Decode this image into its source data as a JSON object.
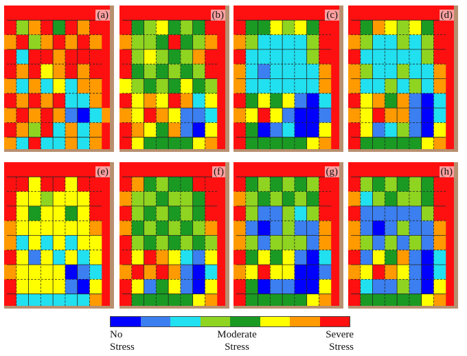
{
  "figure": {
    "panels": [
      {
        "label": "(a)",
        "stress": [
          [
            7,
            7,
            7,
            7,
            7,
            7,
            7,
            7,
            7
          ],
          [
            7,
            3,
            6,
            7,
            4,
            7,
            6,
            7,
            7
          ],
          [
            6,
            7,
            3,
            6,
            7,
            6,
            7,
            6,
            7
          ],
          [
            7,
            2,
            7,
            7,
            6,
            7,
            7,
            7,
            7
          ],
          [
            7,
            6,
            7,
            5,
            6,
            7,
            6,
            7,
            7
          ],
          [
            6,
            2,
            6,
            2,
            5,
            2,
            6,
            6,
            7
          ],
          [
            7,
            6,
            7,
            6,
            7,
            2,
            2,
            6,
            7
          ],
          [
            6,
            7,
            6,
            7,
            6,
            1,
            0,
            2,
            6
          ],
          [
            7,
            6,
            3,
            7,
            2,
            6,
            2,
            6,
            7
          ],
          [
            6,
            2,
            7,
            2,
            2,
            6,
            2,
            6,
            7
          ]
        ]
      },
      {
        "label": "(b)",
        "stress": [
          [
            7,
            7,
            7,
            7,
            7,
            7,
            7,
            7,
            7
          ],
          [
            7,
            4,
            3,
            5,
            4,
            3,
            4,
            7,
            7
          ],
          [
            6,
            3,
            3,
            4,
            7,
            4,
            3,
            6,
            7
          ],
          [
            7,
            3,
            5,
            3,
            4,
            3,
            6,
            7,
            7
          ],
          [
            7,
            4,
            3,
            4,
            3,
            4,
            3,
            7,
            7
          ],
          [
            5,
            3,
            4,
            3,
            4,
            5,
            4,
            3,
            7
          ],
          [
            7,
            5,
            6,
            5,
            7,
            6,
            2,
            5,
            7
          ],
          [
            6,
            5,
            7,
            6,
            5,
            1,
            1,
            2,
            7
          ],
          [
            7,
            6,
            5,
            4,
            6,
            1,
            0,
            5,
            7
          ],
          [
            7,
            5,
            4,
            4,
            4,
            4,
            5,
            6,
            7
          ]
        ]
      },
      {
        "label": "(c)",
        "stress": [
          [
            7,
            7,
            7,
            7,
            7,
            7,
            7,
            7,
            7
          ],
          [
            7,
            4,
            4,
            5,
            3,
            5,
            4,
            7,
            7
          ],
          [
            6,
            3,
            2,
            2,
            2,
            2,
            3,
            7,
            7
          ],
          [
            7,
            2,
            2,
            2,
            2,
            2,
            3,
            7,
            7
          ],
          [
            6,
            2,
            1,
            2,
            2,
            2,
            2,
            6,
            7
          ],
          [
            6,
            2,
            2,
            2,
            2,
            2,
            2,
            6,
            7
          ],
          [
            7,
            4,
            5,
            4,
            5,
            1,
            0,
            2,
            7
          ],
          [
            6,
            5,
            7,
            5,
            1,
            0,
            0,
            1,
            7
          ],
          [
            7,
            4,
            0,
            1,
            2,
            0,
            0,
            5,
            7
          ],
          [
            7,
            4,
            4,
            4,
            4,
            4,
            5,
            6,
            7
          ]
        ]
      },
      {
        "label": "(d)",
        "stress": [
          [
            7,
            7,
            7,
            7,
            7,
            7,
            7,
            7,
            7
          ],
          [
            7,
            4,
            6,
            5,
            3,
            5,
            4,
            7,
            7
          ],
          [
            6,
            3,
            2,
            2,
            3,
            2,
            3,
            7,
            7
          ],
          [
            7,
            2,
            2,
            2,
            2,
            2,
            3,
            7,
            7
          ],
          [
            6,
            3,
            2,
            2,
            3,
            2,
            2,
            6,
            7
          ],
          [
            6,
            2,
            2,
            3,
            2,
            3,
            2,
            6,
            7
          ],
          [
            7,
            5,
            6,
            4,
            6,
            1,
            0,
            2,
            7
          ],
          [
            6,
            5,
            7,
            6,
            6,
            1,
            0,
            2,
            7
          ],
          [
            7,
            5,
            1,
            2,
            3,
            1,
            0,
            5,
            7
          ],
          [
            7,
            4,
            4,
            4,
            4,
            4,
            5,
            6,
            7
          ]
        ]
      },
      {
        "label": "(e)",
        "stress": [
          [
            7,
            7,
            7,
            7,
            7,
            7,
            7,
            7,
            7
          ],
          [
            7,
            7,
            5,
            7,
            7,
            5,
            7,
            7,
            7
          ],
          [
            7,
            5,
            5,
            3,
            5,
            5,
            5,
            7,
            7
          ],
          [
            7,
            5,
            4,
            5,
            5,
            4,
            5,
            7,
            7
          ],
          [
            6,
            5,
            5,
            5,
            5,
            5,
            5,
            6,
            7
          ],
          [
            6,
            2,
            5,
            2,
            5,
            2,
            5,
            5,
            7
          ],
          [
            7,
            5,
            1,
            5,
            2,
            5,
            2,
            5,
            7
          ],
          [
            6,
            5,
            5,
            5,
            5,
            0,
            1,
            2,
            7
          ],
          [
            7,
            5,
            5,
            5,
            5,
            1,
            0,
            5,
            7
          ],
          [
            7,
            2,
            2,
            2,
            2,
            2,
            2,
            6,
            7
          ]
        ]
      },
      {
        "label": "(f)",
        "stress": [
          [
            7,
            7,
            7,
            7,
            7,
            7,
            7,
            7,
            7
          ],
          [
            7,
            6,
            4,
            3,
            4,
            4,
            7,
            7,
            7
          ],
          [
            6,
            3,
            3,
            4,
            3,
            3,
            4,
            7,
            7
          ],
          [
            7,
            3,
            4,
            3,
            4,
            3,
            4,
            7,
            7
          ],
          [
            6,
            4,
            3,
            4,
            3,
            4,
            3,
            6,
            7
          ],
          [
            7,
            3,
            4,
            3,
            4,
            3,
            4,
            3,
            7
          ],
          [
            7,
            5,
            7,
            6,
            5,
            2,
            1,
            5,
            7
          ],
          [
            6,
            7,
            6,
            7,
            6,
            1,
            0,
            2,
            7
          ],
          [
            7,
            5,
            1,
            4,
            5,
            1,
            0,
            5,
            7
          ],
          [
            7,
            4,
            4,
            4,
            4,
            4,
            5,
            6,
            7
          ]
        ]
      },
      {
        "label": "(g)",
        "stress": [
          [
            7,
            7,
            7,
            7,
            7,
            7,
            7,
            7,
            7
          ],
          [
            7,
            4,
            3,
            4,
            3,
            4,
            3,
            7,
            7
          ],
          [
            6,
            3,
            4,
            3,
            4,
            3,
            4,
            7,
            7
          ],
          [
            7,
            3,
            1,
            1,
            3,
            2,
            3,
            7,
            7
          ],
          [
            6,
            1,
            0,
            1,
            3,
            1,
            1,
            6,
            7
          ],
          [
            6,
            3,
            1,
            3,
            3,
            3,
            1,
            6,
            7
          ],
          [
            7,
            4,
            5,
            4,
            5,
            1,
            0,
            2,
            7
          ],
          [
            6,
            5,
            7,
            5,
            5,
            0,
            0,
            1,
            7
          ],
          [
            7,
            4,
            0,
            1,
            1,
            0,
            0,
            5,
            7
          ],
          [
            7,
            4,
            4,
            4,
            4,
            4,
            5,
            6,
            7
          ]
        ]
      },
      {
        "label": "(h)",
        "stress": [
          [
            7,
            7,
            7,
            7,
            7,
            7,
            7,
            7,
            7
          ],
          [
            7,
            3,
            4,
            3,
            4,
            3,
            4,
            7,
            7
          ],
          [
            6,
            2,
            3,
            4,
            3,
            3,
            4,
            7,
            7
          ],
          [
            7,
            1,
            1,
            1,
            1,
            1,
            3,
            7,
            7
          ],
          [
            6,
            1,
            0,
            1,
            3,
            1,
            1,
            6,
            7
          ],
          [
            6,
            3,
            1,
            3,
            1,
            3,
            1,
            6,
            7
          ],
          [
            7,
            1,
            5,
            4,
            6,
            1,
            0,
            2,
            7
          ],
          [
            6,
            5,
            7,
            6,
            5,
            1,
            0,
            2,
            7
          ],
          [
            7,
            2,
            1,
            1,
            3,
            1,
            0,
            5,
            7
          ],
          [
            7,
            4,
            4,
            4,
            4,
            4,
            5,
            6,
            7
          ]
        ]
      }
    ]
  },
  "legend": {
    "colors": [
      "#0000ff",
      "#3b7ff0",
      "#21e0f0",
      "#8fd420",
      "#1a9a23",
      "#ffff00",
      "#ff9a00",
      "#ff1010"
    ],
    "labels": {
      "no_stress": "No\nStress",
      "moderate_stress": "Moderate\nStress",
      "severe_stress": "Severe\nStress"
    }
  }
}
